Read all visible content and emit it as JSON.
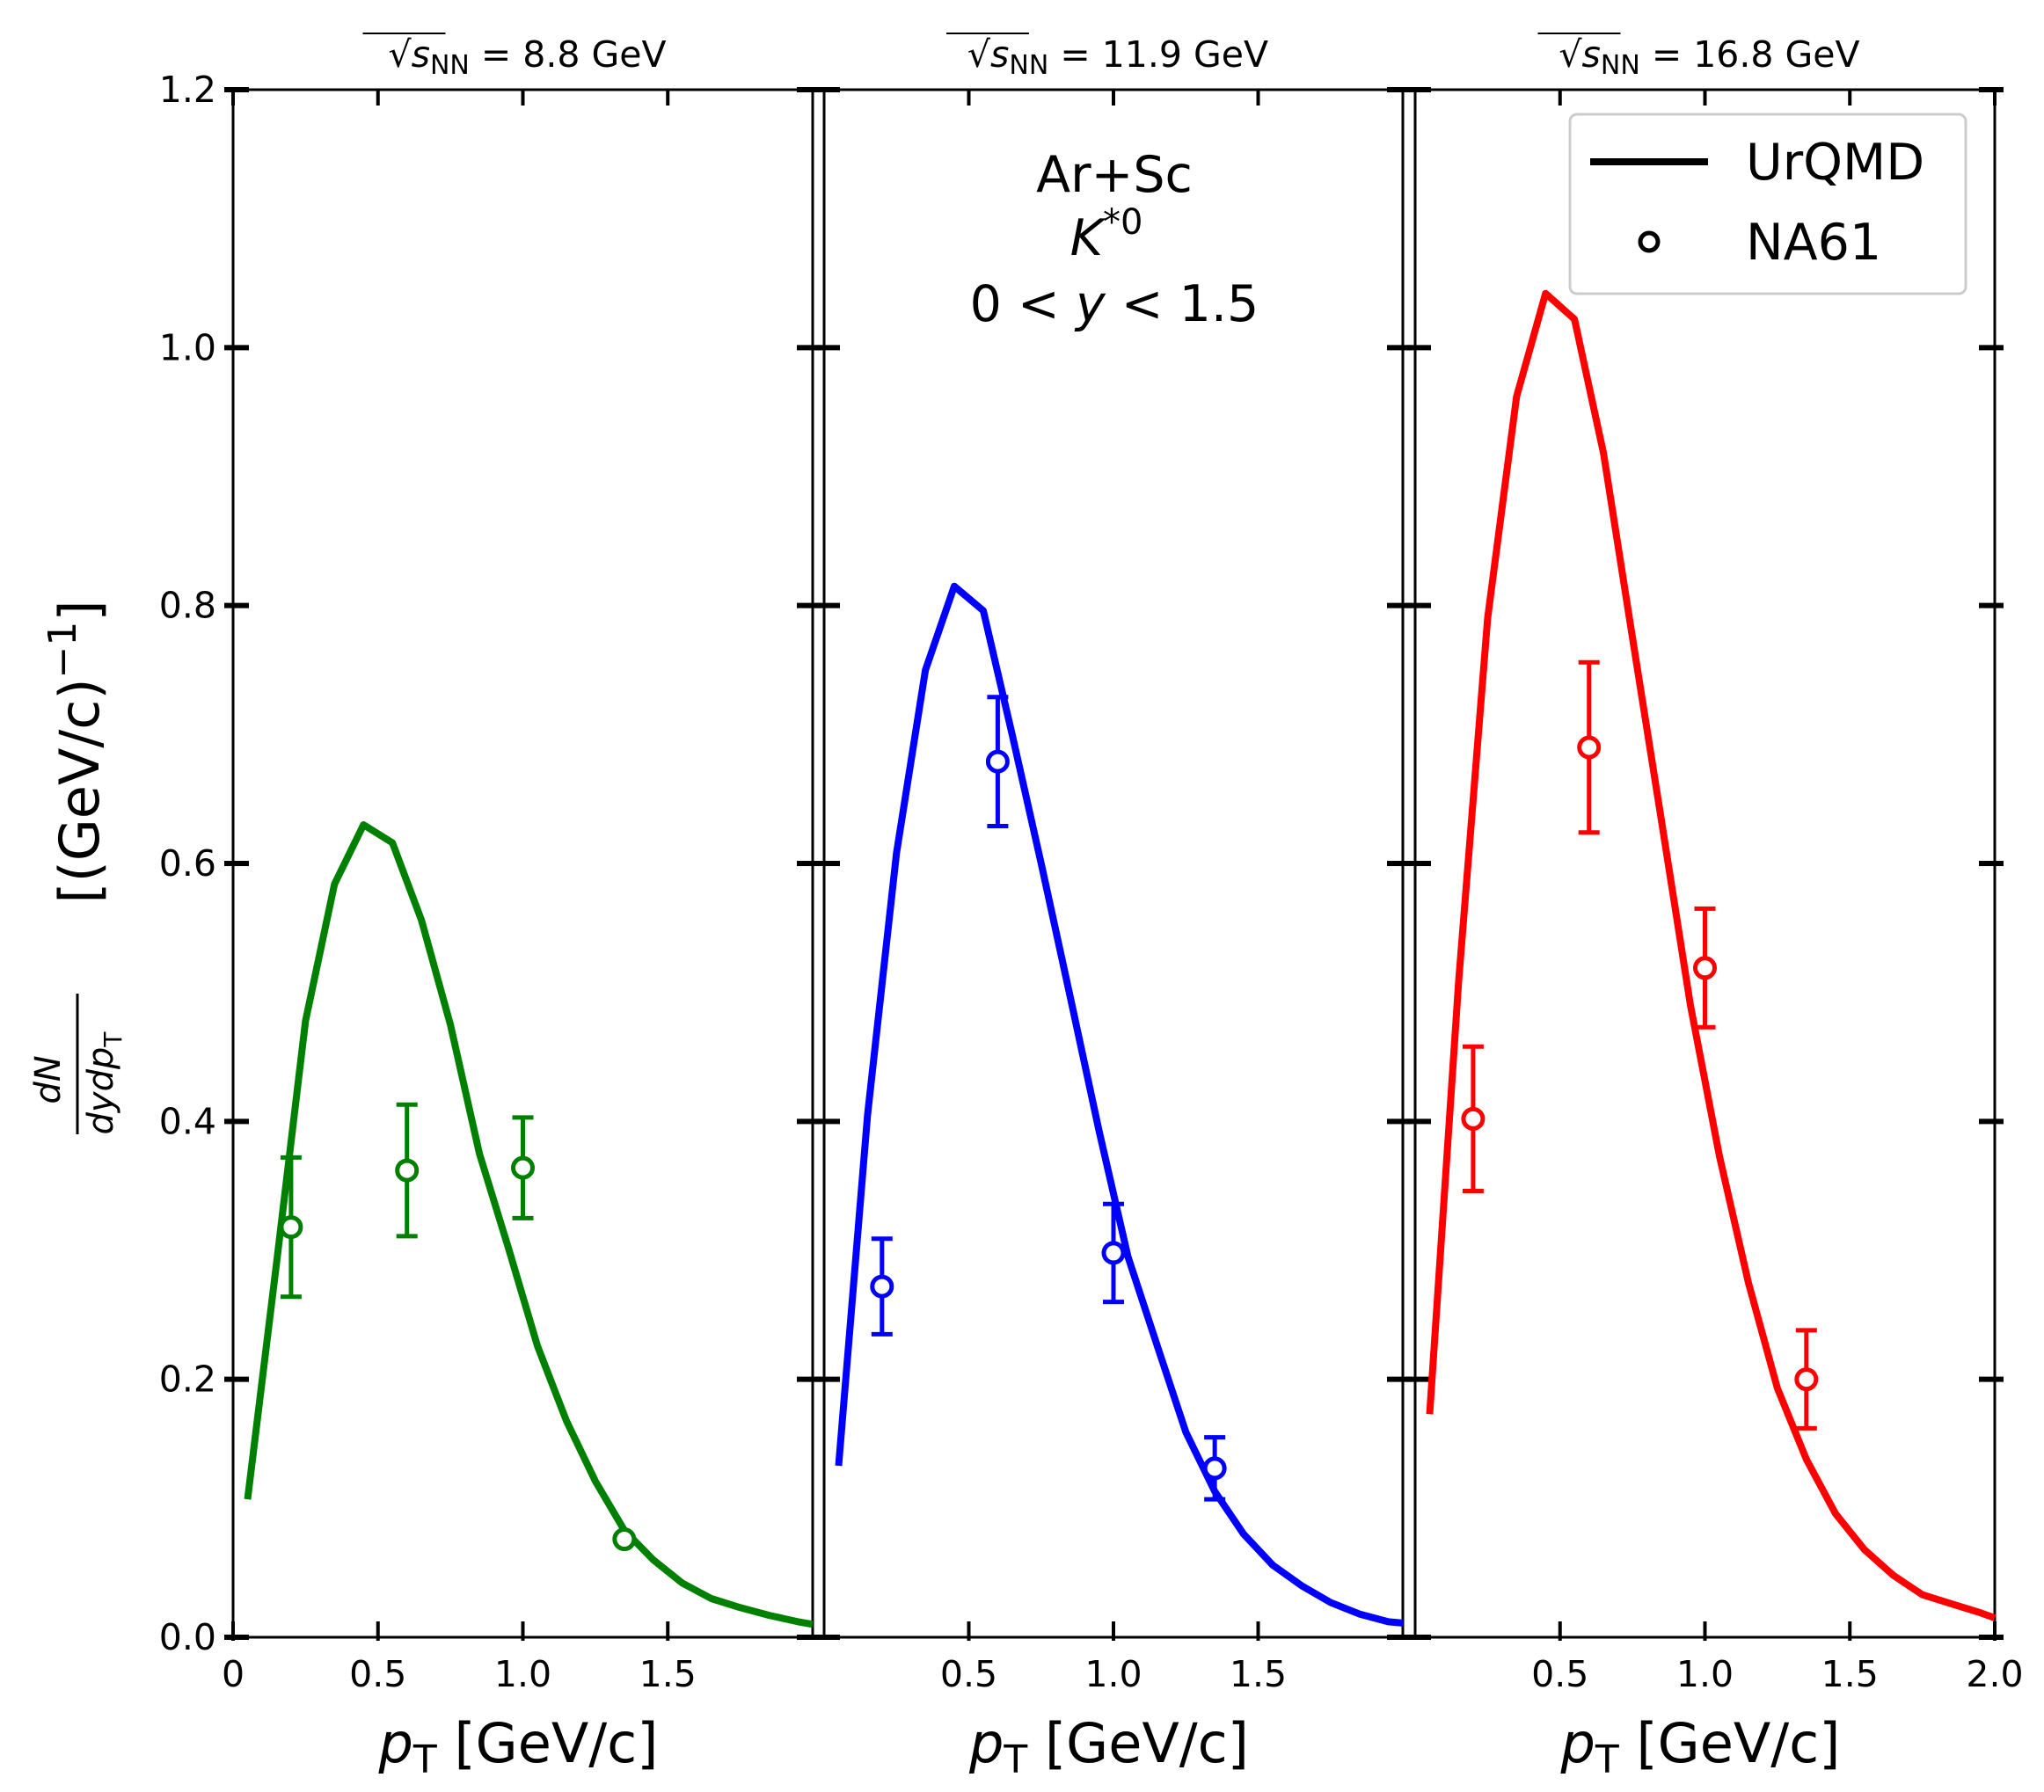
{
  "chart_data": [
    {
      "type": "line",
      "title_prefix": "√",
      "title_var": "s",
      "title_sub": "NN",
      "title_value": " = 8.8 GeV",
      "xlabel_var": "p",
      "xlabel_sub": "T",
      "xlabel_unit": " [GeV/c]",
      "xlim": [
        0,
        2.0
      ],
      "ylim": [
        0,
        1.2
      ],
      "xticks": [
        "0",
        "0.5",
        "1.0",
        "1.5"
      ],
      "xtick_values": [
        0,
        0.5,
        1.0,
        1.5
      ],
      "color": "#008000",
      "series": [
        {
          "name": "UrQMD",
          "style": "line",
          "x": [
            0.05,
            0.15,
            0.25,
            0.35,
            0.45,
            0.55,
            0.65,
            0.75,
            0.85,
            0.95,
            1.05,
            1.15,
            1.25,
            1.35,
            1.45,
            1.55,
            1.65,
            1.75,
            1.85,
            1.95,
            2.0
          ],
          "y": [
            0.107,
            0.29,
            0.478,
            0.584,
            0.63,
            0.616,
            0.556,
            0.475,
            0.375,
            0.302,
            0.226,
            0.168,
            0.121,
            0.083,
            0.06,
            0.042,
            0.03,
            0.023,
            0.017,
            0.012,
            0.01
          ]
        },
        {
          "name": "NA61",
          "style": "points",
          "x": [
            0.2,
            0.6,
            1.0,
            1.35
          ],
          "y": [
            0.318,
            0.362,
            0.364,
            0.076
          ],
          "yerr": [
            0.054,
            0.051,
            0.039,
            0.0
          ]
        }
      ]
    },
    {
      "type": "line",
      "title_prefix": "√",
      "title_var": "s",
      "title_sub": "NN",
      "title_value": " = 11.9 GeV",
      "xlabel_var": "p",
      "xlabel_sub": "T",
      "xlabel_unit": " [GeV/c]",
      "xlim": [
        0,
        2.0
      ],
      "ylim": [
        0,
        1.2
      ],
      "xticks": [
        "0.5",
        "1.0",
        "1.5"
      ],
      "xtick_values": [
        0.5,
        1.0,
        1.5
      ],
      "color": "#0000ff",
      "series": [
        {
          "name": "UrQMD",
          "style": "line",
          "x": [
            0.05,
            0.15,
            0.25,
            0.35,
            0.45,
            0.55,
            0.65,
            0.75,
            0.85,
            0.95,
            1.05,
            1.15,
            1.25,
            1.35,
            1.45,
            1.55,
            1.65,
            1.75,
            1.85,
            1.95,
            2.0
          ],
          "y": [
            0.133,
            0.405,
            0.608,
            0.75,
            0.815,
            0.796,
            0.7,
            0.6,
            0.497,
            0.393,
            0.295,
            0.227,
            0.159,
            0.113,
            0.08,
            0.056,
            0.04,
            0.027,
            0.018,
            0.012,
            0.011
          ]
        },
        {
          "name": "NA61",
          "style": "points",
          "x": [
            0.2,
            0.6,
            1.0,
            1.35
          ],
          "y": [
            0.272,
            0.679,
            0.298,
            0.131
          ],
          "yerr": [
            0.037,
            0.05,
            0.038,
            0.024
          ]
        }
      ]
    },
    {
      "type": "line",
      "title_prefix": "√",
      "title_var": "s",
      "title_sub": "NN",
      "title_value": " = 16.8 GeV",
      "xlabel_var": "p",
      "xlabel_sub": "T",
      "xlabel_unit": " [GeV/c]",
      "xlim": [
        0,
        2.0
      ],
      "ylim": [
        0,
        1.2
      ],
      "xticks": [
        "0.5",
        "1.0",
        "1.5",
        "2.0"
      ],
      "xtick_values": [
        0.5,
        1.0,
        1.5,
        2.0
      ],
      "color": "#ff0000",
      "series": [
        {
          "name": "UrQMD",
          "style": "line",
          "x": [
            0.05,
            0.15,
            0.25,
            0.35,
            0.45,
            0.55,
            0.65,
            0.75,
            0.85,
            0.95,
            1.05,
            1.15,
            1.25,
            1.35,
            1.45,
            1.55,
            1.65,
            1.75,
            1.85,
            1.95,
            2.0
          ],
          "y": [
            0.173,
            0.508,
            0.79,
            0.962,
            1.042,
            1.022,
            0.918,
            0.775,
            0.633,
            0.49,
            0.373,
            0.275,
            0.193,
            0.138,
            0.096,
            0.068,
            0.048,
            0.033,
            0.026,
            0.019,
            0.015
          ]
        },
        {
          "name": "NA61",
          "style": "points",
          "x": [
            0.2,
            0.6,
            1.0,
            1.35
          ],
          "y": [
            0.402,
            0.69,
            0.519,
            0.2
          ],
          "yerr": [
            0.056,
            0.066,
            0.046,
            0.038
          ]
        }
      ]
    }
  ],
  "shared": {
    "ylabel_frac_num": "dN",
    "ylabel_frac_den_a": "dydp",
    "ylabel_frac_den_sub": "T",
    "ylabel_unit": "[(GeV/c)",
    "ylabel_exp": "−1",
    "ylabel_close": "]",
    "yticks": [
      "0.0",
      "0.2",
      "0.4",
      "0.6",
      "0.8",
      "1.0",
      "1.2"
    ],
    "ytick_values": [
      0.0,
      0.2,
      0.4,
      0.6,
      0.8,
      1.0,
      1.2
    ]
  },
  "annotation": {
    "line1": "Ar+Sc",
    "line2_var": "K",
    "line2_sup": "*0",
    "line3_a": "0 < ",
    "line3_var": "y",
    "line3_b": " < 1.5"
  },
  "legend": {
    "line_label": "UrQMD",
    "marker_label": "NA61",
    "placement": "top-right"
  }
}
